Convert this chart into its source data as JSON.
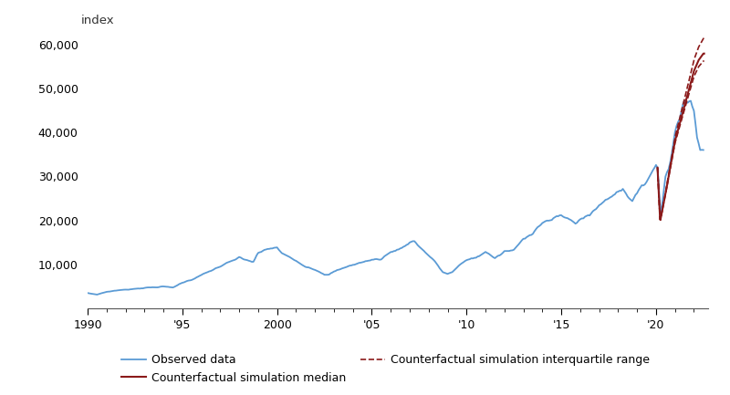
{
  "title": "",
  "ylabel": "index",
  "xlim": [
    1990.0,
    2022.75
  ],
  "ylim": [
    0,
    63000
  ],
  "yticks": [
    10000,
    20000,
    30000,
    40000,
    50000,
    60000
  ],
  "xtick_positions": [
    1990,
    1995,
    2000,
    2005,
    2010,
    2015,
    2020
  ],
  "xtick_labels": [
    "1990",
    "'95",
    "2000",
    "'05",
    "'10",
    "'15",
    "'20"
  ],
  "observed_color": "#5b9bd5",
  "median_color": "#8b1a1a",
  "iqr_color": "#8b1a1a",
  "background_color": "#ffffff",
  "legend_observed": "Observed data",
  "legend_median": "Counterfactual simulation median",
  "legend_iqr": "Counterfactual simulation interquartile range",
  "observed_linewidth": 1.3,
  "median_linewidth": 1.5,
  "iqr_linewidth": 1.2,
  "figsize": [
    8.0,
    4.33
  ],
  "dpi": 100
}
